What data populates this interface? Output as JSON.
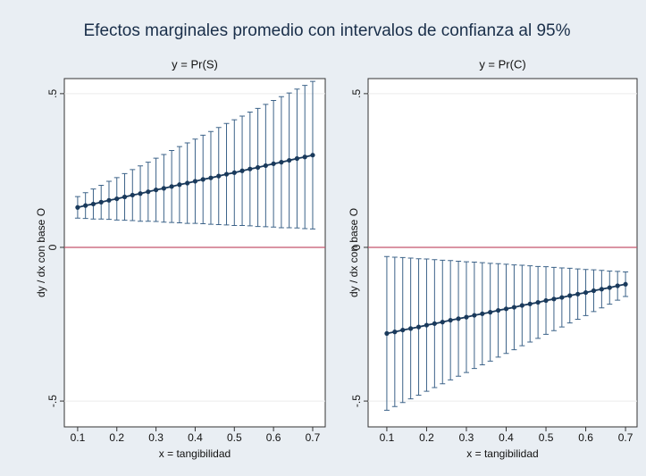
{
  "title": "Efectos marginales promedio con intervalos de confianza al 95%",
  "chart_data": [
    {
      "type": "errorbar-line",
      "title": "y = Pr(S)",
      "x_label": "x = tangibilidad",
      "y_label": "dy / dx con base O",
      "x": [
        0.1,
        0.12,
        0.14,
        0.16,
        0.18,
        0.2,
        0.22,
        0.24,
        0.26,
        0.28,
        0.3,
        0.32,
        0.34,
        0.36,
        0.38,
        0.4,
        0.42,
        0.44,
        0.46,
        0.48,
        0.5,
        0.52,
        0.54,
        0.56,
        0.58,
        0.6,
        0.62,
        0.64,
        0.66,
        0.68,
        0.7
      ],
      "values": [
        0.13,
        0.136,
        0.141,
        0.147,
        0.153,
        0.158,
        0.164,
        0.17,
        0.175,
        0.181,
        0.187,
        0.192,
        0.198,
        0.204,
        0.209,
        0.215,
        0.221,
        0.226,
        0.232,
        0.238,
        0.243,
        0.249,
        0.255,
        0.26,
        0.266,
        0.272,
        0.277,
        0.283,
        0.289,
        0.294,
        0.3
      ],
      "lower": [
        0.095,
        0.094,
        0.092,
        0.092,
        0.091,
        0.089,
        0.088,
        0.087,
        0.085,
        0.085,
        0.084,
        0.082,
        0.081,
        0.08,
        0.078,
        0.078,
        0.077,
        0.075,
        0.074,
        0.073,
        0.071,
        0.071,
        0.07,
        0.068,
        0.067,
        0.066,
        0.064,
        0.064,
        0.063,
        0.061,
        0.06
      ],
      "upper": [
        0.165,
        0.178,
        0.19,
        0.202,
        0.215,
        0.227,
        0.24,
        0.253,
        0.265,
        0.277,
        0.29,
        0.302,
        0.315,
        0.328,
        0.34,
        0.352,
        0.365,
        0.377,
        0.39,
        0.403,
        0.415,
        0.427,
        0.44,
        0.452,
        0.465,
        0.478,
        0.49,
        0.502,
        0.515,
        0.527,
        0.54
      ],
      "color": "#1a3a5c",
      "ci_color": "#3d6389",
      "hline": 0,
      "hline_color": "#c4566e",
      "xlim": [
        0.066,
        0.732
      ],
      "xticks": [
        0.1,
        0.2,
        0.3,
        0.4,
        0.5,
        0.6,
        0.7
      ],
      "ylim": [
        -0.584,
        0.549
      ],
      "yticks": [
        {
          "value": 0.5,
          "label": ".5"
        },
        0,
        {
          "value": -0.5,
          "label": "-.5"
        }
      ],
      "grid": true
    },
    {
      "type": "errorbar-line",
      "title": "y = Pr(C)",
      "x_label": "x = tangibilidad",
      "y_label": "dy / dx con base O",
      "x": [
        0.1,
        0.12,
        0.14,
        0.16,
        0.18,
        0.2,
        0.22,
        0.24,
        0.26,
        0.28,
        0.3,
        0.32,
        0.34,
        0.36,
        0.38,
        0.4,
        0.42,
        0.44,
        0.46,
        0.48,
        0.5,
        0.52,
        0.54,
        0.56,
        0.58,
        0.6,
        0.62,
        0.64,
        0.66,
        0.68,
        0.7
      ],
      "values": [
        -0.28,
        -0.275,
        -0.269,
        -0.264,
        -0.259,
        -0.253,
        -0.248,
        -0.243,
        -0.237,
        -0.232,
        -0.227,
        -0.221,
        -0.216,
        -0.211,
        -0.205,
        -0.2,
        -0.195,
        -0.189,
        -0.184,
        -0.179,
        -0.173,
        -0.168,
        -0.163,
        -0.157,
        -0.152,
        -0.147,
        -0.141,
        -0.136,
        -0.131,
        -0.125,
        -0.12
      ],
      "lower": [
        -0.53,
        -0.518,
        -0.505,
        -0.493,
        -0.481,
        -0.468,
        -0.456,
        -0.444,
        -0.431,
        -0.419,
        -0.407,
        -0.394,
        -0.382,
        -0.37,
        -0.357,
        -0.345,
        -0.333,
        -0.32,
        -0.308,
        -0.296,
        -0.283,
        -0.271,
        -0.259,
        -0.246,
        -0.234,
        -0.222,
        -0.209,
        -0.197,
        -0.185,
        -0.172,
        -0.16
      ],
      "upper": [
        -0.03,
        -0.032,
        -0.033,
        -0.035,
        -0.037,
        -0.038,
        -0.04,
        -0.042,
        -0.043,
        -0.045,
        -0.047,
        -0.048,
        -0.05,
        -0.052,
        -0.053,
        -0.055,
        -0.057,
        -0.058,
        -0.06,
        -0.062,
        -0.063,
        -0.065,
        -0.067,
        -0.068,
        -0.07,
        -0.072,
        -0.073,
        -0.075,
        -0.077,
        -0.078,
        -0.08
      ],
      "color": "#1a3a5c",
      "ci_color": "#3d6389",
      "hline": 0,
      "hline_color": "#c4566e",
      "xlim": [
        0.053,
        0.729
      ],
      "xticks": [
        0.1,
        0.2,
        0.3,
        0.4,
        0.5,
        0.6,
        0.7
      ],
      "ylim": [
        -0.584,
        0.549
      ],
      "yticks": [
        {
          "value": 0.5,
          "label": ".5"
        },
        0,
        {
          "value": -0.5,
          "label": "-.5"
        }
      ],
      "grid": true
    }
  ]
}
